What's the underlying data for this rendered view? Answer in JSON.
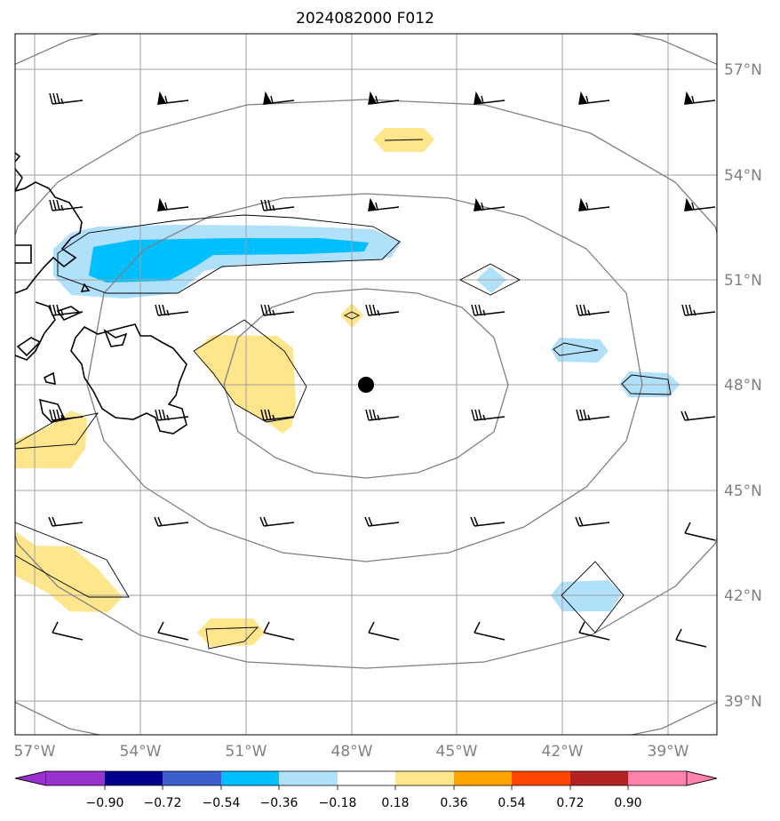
{
  "title": "2024082000 F012",
  "lat_labels": [
    "57°N",
    "54°N",
    "51°N",
    "48°N",
    "45°N",
    "42°N",
    "39°N"
  ],
  "lon_labels": [
    "57°W",
    "54°W",
    "51°W",
    "48°W",
    "45°W",
    "42°W",
    "39°W"
  ],
  "colorbar": {
    "ticks": [
      "−0.90",
      "−0.72",
      "−0.54",
      "−0.36",
      "−0.18",
      "0.18",
      "0.36",
      "0.54",
      "0.72",
      "0.90"
    ],
    "colors": [
      "#9932cc",
      "#00008b",
      "#3a5fcd",
      "#00bfff",
      "#b0e0fa",
      "#ffffff",
      "#ffe68c",
      "#ffa500",
      "#ff4500",
      "#b22222",
      "#ff82ab"
    ]
  },
  "colors": {
    "grid": "#a0a0a0",
    "range_rings": "#808080",
    "coastline": "#000000",
    "center_marker": "#000000"
  },
  "center_marker": {
    "lat": 48.0,
    "lon": -47.6
  }
}
